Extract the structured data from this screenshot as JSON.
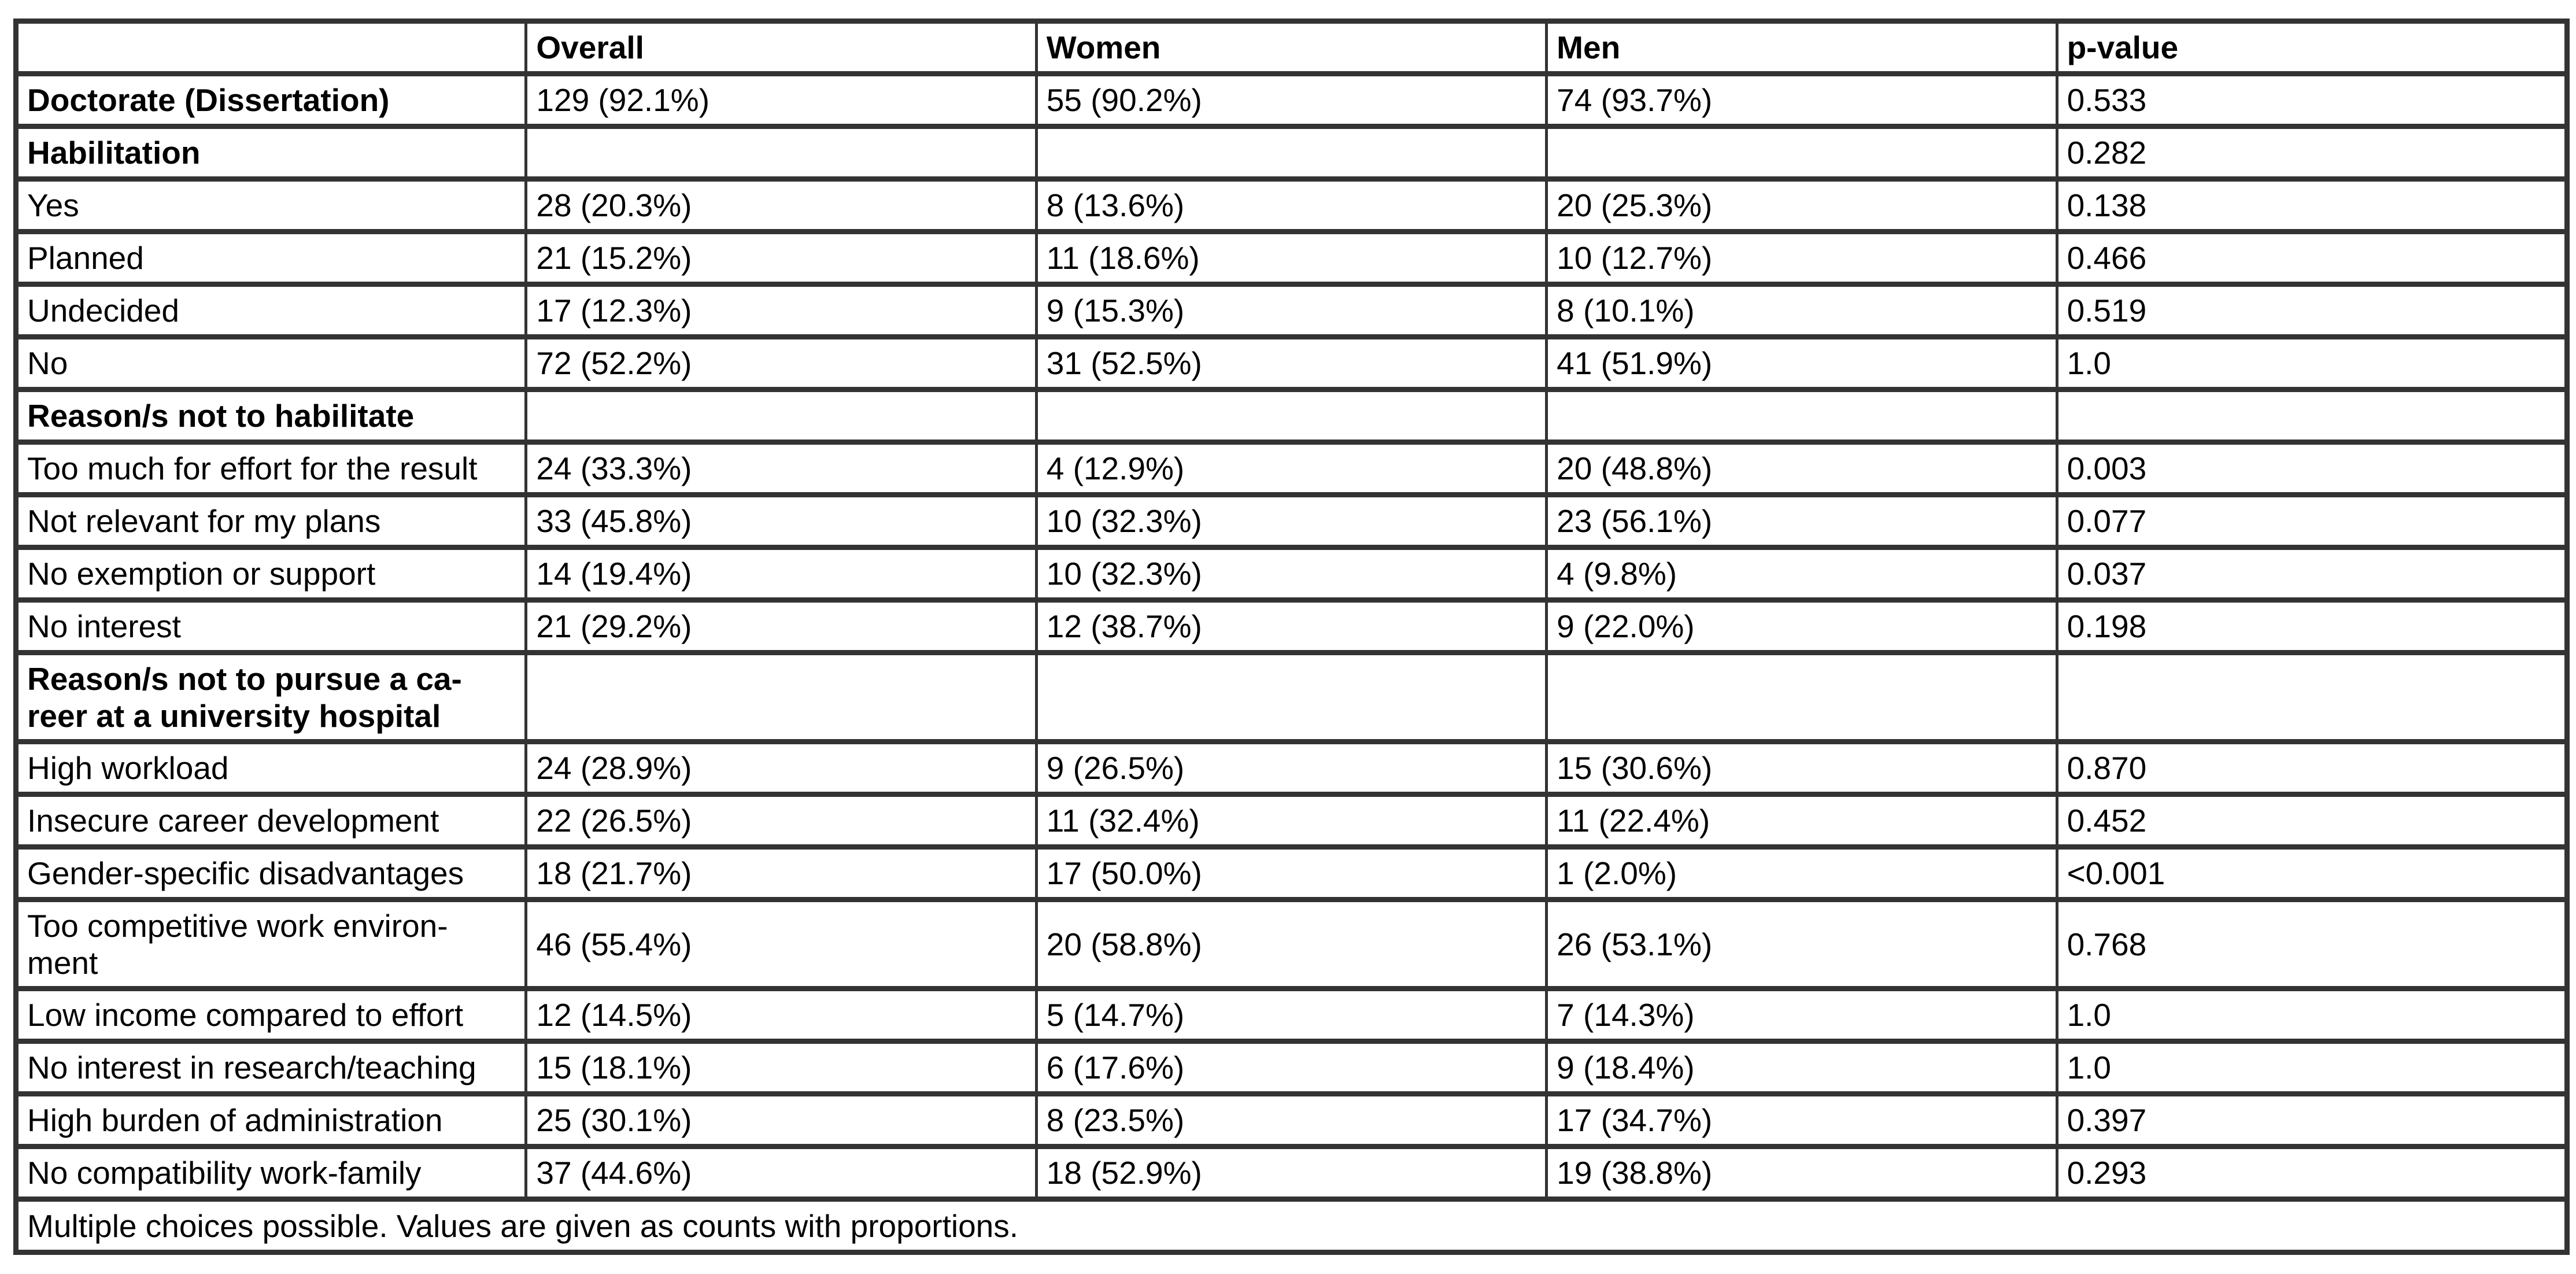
{
  "page": {
    "background_color": "#ffffff",
    "border_color": "#333333",
    "text_color": "#000000"
  },
  "table": {
    "columns": [
      {
        "label": ""
      },
      {
        "label": "Overall"
      },
      {
        "label": "Women"
      },
      {
        "label": "Men"
      },
      {
        "label": "p-value"
      }
    ],
    "rows": [
      {
        "label": "Doctorate (Dissertation)",
        "bold": true,
        "tall": false,
        "cells": [
          "129 (92.1%)",
          "55 (90.2%)",
          "74 (93.7%)",
          "0.533"
        ]
      },
      {
        "label": "Habilitation",
        "bold": true,
        "tall": false,
        "cells": [
          "",
          "",
          "",
          "0.282"
        ]
      },
      {
        "label": "Yes",
        "bold": false,
        "tall": false,
        "cells": [
          "28 (20.3%)",
          "8 (13.6%)",
          "20 (25.3%)",
          "0.138"
        ]
      },
      {
        "label": "Planned",
        "bold": false,
        "tall": false,
        "cells": [
          "21 (15.2%)",
          "11 (18.6%)",
          "10 (12.7%)",
          "0.466"
        ]
      },
      {
        "label": "Undecided",
        "bold": false,
        "tall": false,
        "cells": [
          "17 (12.3%)",
          "9 (15.3%)",
          "8 (10.1%)",
          "0.519"
        ]
      },
      {
        "label": "No",
        "bold": false,
        "tall": false,
        "cells": [
          "72 (52.2%)",
          "31 (52.5%)",
          "41 (51.9%)",
          "1.0"
        ]
      },
      {
        "label": "Reason/s not to habilitate",
        "bold": true,
        "tall": false,
        "cells": [
          "",
          "",
          "",
          ""
        ]
      },
      {
        "label": "Too much for effort for the result",
        "bold": false,
        "tall": false,
        "cells": [
          "24 (33.3%)",
          "4 (12.9%)",
          "20 (48.8%)",
          "0.003"
        ]
      },
      {
        "label": "Not relevant for my plans",
        "bold": false,
        "tall": false,
        "cells": [
          "33 (45.8%)",
          "10 (32.3%)",
          "23 (56.1%)",
          "0.077"
        ]
      },
      {
        "label": "No exemption or support",
        "bold": false,
        "tall": false,
        "cells": [
          "14 (19.4%)",
          "10 (32.3%)",
          "4 (9.8%)",
          "0.037"
        ]
      },
      {
        "label": "No interest",
        "bold": false,
        "tall": false,
        "cells": [
          "21 (29.2%)",
          "12 (38.7%)",
          "9 (22.0%)",
          "0.198"
        ]
      },
      {
        "label": "Reason/s not to pursue a ca-\nreer at a university hospital",
        "bold": true,
        "tall": true,
        "cells": [
          "",
          "",
          "",
          ""
        ]
      },
      {
        "label": "High workload",
        "bold": false,
        "tall": false,
        "cells": [
          "24 (28.9%)",
          "9 (26.5%)",
          "15 (30.6%)",
          "0.870"
        ]
      },
      {
        "label": "Insecure career development",
        "bold": false,
        "tall": false,
        "cells": [
          "22 (26.5%)",
          "11 (32.4%)",
          "11 (22.4%)",
          "0.452"
        ]
      },
      {
        "label": "Gender-specific disadvantages",
        "bold": false,
        "tall": false,
        "cells": [
          "18 (21.7%)",
          "17 (50.0%)",
          "1 (2.0%)",
          "<0.001"
        ]
      },
      {
        "label": "Too competitive work environ-\nment",
        "bold": false,
        "tall": true,
        "cells": [
          "46 (55.4%)",
          "20 (58.8%)",
          "26 (53.1%)",
          "0.768"
        ]
      },
      {
        "label": "Low income compared to effort",
        "bold": false,
        "tall": false,
        "cells": [
          "12 (14.5%)",
          "5 (14.7%)",
          "7 (14.3%)",
          "1.0"
        ]
      },
      {
        "label": "No interest in research/teaching",
        "bold": false,
        "tall": false,
        "cells": [
          "15 (18.1%)",
          "6 (17.6%)",
          "9 (18.4%)",
          "1.0"
        ]
      },
      {
        "label": "High burden of administration",
        "bold": false,
        "tall": false,
        "cells": [
          "25 (30.1%)",
          "8 (23.5%)",
          "17 (34.7%)",
          "0.397"
        ]
      },
      {
        "label": "No compatibility work-family",
        "bold": false,
        "tall": false,
        "cells": [
          "37 (44.6%)",
          "18 (52.9%)",
          "19 (38.8%)",
          "0.293"
        ]
      }
    ],
    "footnote": "Multiple choices possible. Values are given as counts with proportions."
  }
}
